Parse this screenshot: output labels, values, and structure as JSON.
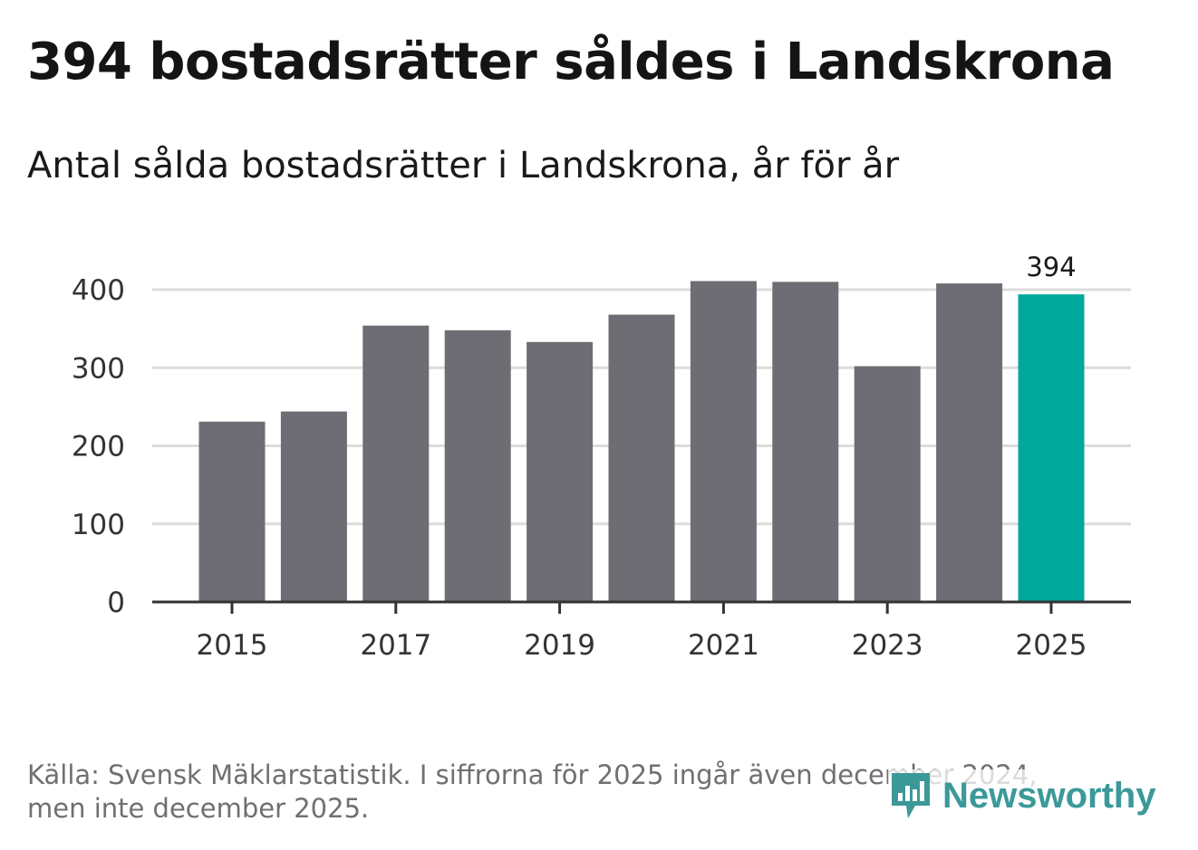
{
  "header": {
    "title": "394 bostadsrätter såldes i Landskrona",
    "subtitle": "Antal sålda bostadsrätter i Landskrona, år för år"
  },
  "chart_data": {
    "type": "bar",
    "title": "394 bostadsrätter såldes i Landskrona",
    "subtitle": "Antal sålda bostadsrätter i Landskrona, år för år",
    "categories": [
      "2015",
      "2016",
      "2017",
      "2018",
      "2019",
      "2020",
      "2021",
      "2022",
      "2023",
      "2024",
      "2025"
    ],
    "values": [
      231,
      244,
      354,
      348,
      333,
      368,
      411,
      410,
      302,
      408,
      394
    ],
    "highlight_index": 10,
    "highlight_label": "394",
    "x_tick_labels": [
      "2015",
      "2017",
      "2019",
      "2021",
      "2023",
      "2025"
    ],
    "y_ticks": [
      0,
      100,
      200,
      300,
      400
    ],
    "ylim": [
      0,
      410
    ],
    "xlabel": "",
    "ylabel": "",
    "grid": true,
    "colors": {
      "bar": "#6e6d73",
      "highlight": "#00a79b",
      "grid": "#dcdcdc",
      "axis": "#333333"
    }
  },
  "footer": {
    "source_line1": "Källa: Svensk Mäklarstatistik. I siffrorna för 2025 ingår även december 2024,",
    "source_line2": "men inte december 2025.",
    "brand": "Newsworthy",
    "brand_icon": "chart-speech-bubble-icon",
    "brand_color": "#3b9999"
  }
}
